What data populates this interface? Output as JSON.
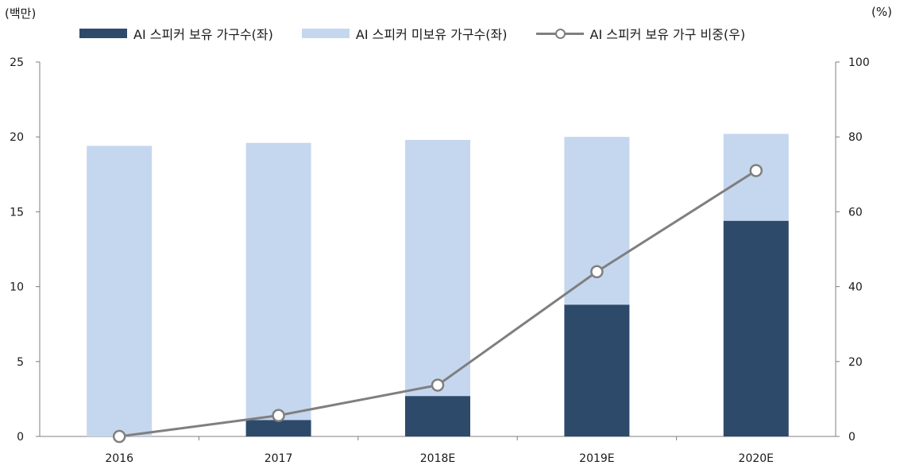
{
  "chart_data": {
    "type": "bar",
    "categories": [
      "2016",
      "2017",
      "2018E",
      "2019E",
      "2020E"
    ],
    "series": [
      {
        "name": "AI 스피커 보유 가구수(좌)",
        "type": "stacked-bar",
        "axis": "left",
        "color": "#2e4a6b",
        "values": [
          0,
          1.1,
          2.7,
          8.8,
          14.4
        ]
      },
      {
        "name": "AI 스피커 미보유 가구수(좌)",
        "type": "stacked-bar",
        "axis": "left",
        "color": "#c5d7ef",
        "values": [
          19.4,
          18.5,
          17.1,
          11.2,
          5.8
        ]
      },
      {
        "name": "AI 스피커 보유 가구 비중(우)",
        "type": "line",
        "axis": "right",
        "color": "#7f7f7f",
        "values": [
          0,
          5.6,
          13.7,
          44,
          71
        ]
      }
    ],
    "left_axis": {
      "unit_label": "(백만)",
      "ylim": [
        0,
        25
      ],
      "ticks": [
        "0",
        "5",
        "10",
        "15",
        "20",
        "25"
      ]
    },
    "right_axis": {
      "unit_label": "(%)",
      "ylim": [
        0,
        100
      ],
      "ticks": [
        "0",
        "20",
        "40",
        "60",
        "80",
        "100"
      ]
    },
    "grid": false,
    "legend_position": "top"
  }
}
